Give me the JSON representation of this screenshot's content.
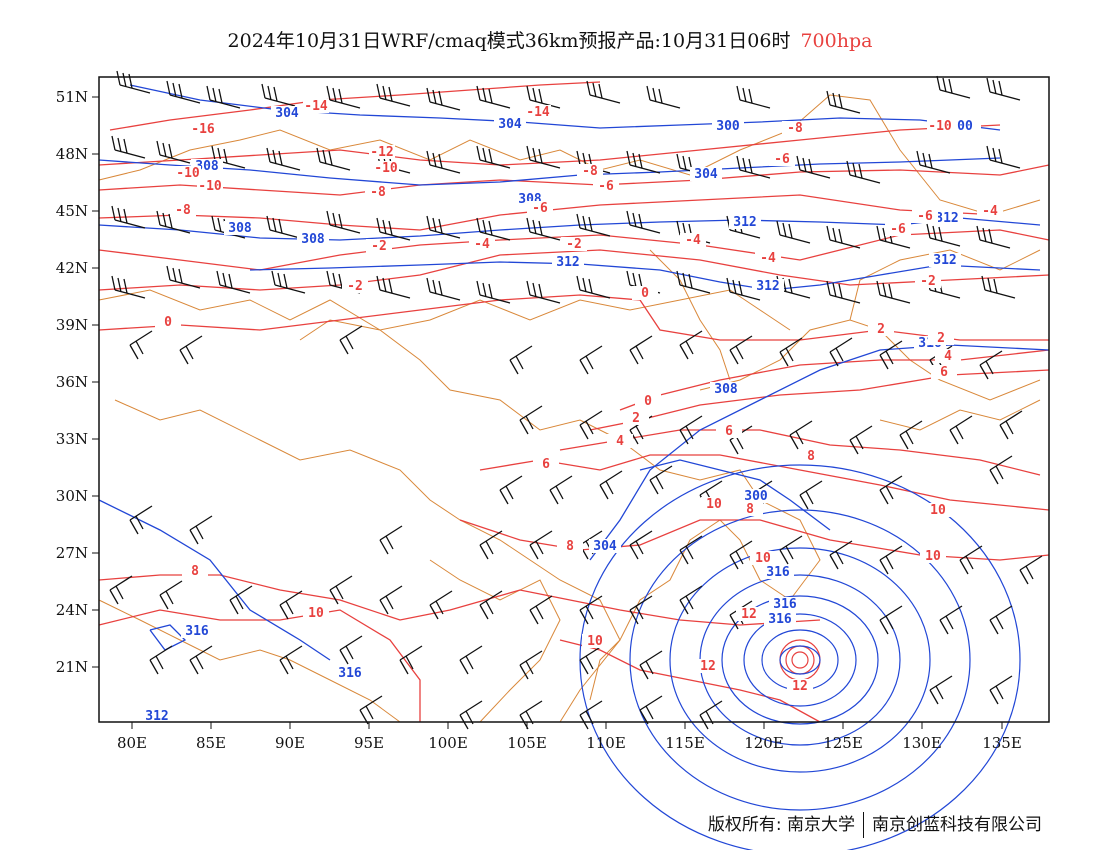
{
  "title": {
    "main": "2024年10月31日WRF/cmaq模式36km预报产品:10月31日06时",
    "level": "700hpa"
  },
  "colors": {
    "temperature": "#e8413f",
    "height": "#2247d6",
    "border": "#d9883a",
    "wind": "#111111",
    "frame": "#111111"
  },
  "axes": {
    "x_ticks": [
      "80E",
      "85E",
      "90E",
      "95E",
      "100E",
      "105E",
      "110E",
      "115E",
      "120E",
      "125E",
      "130E",
      "135E"
    ],
    "y_ticks": [
      "51N",
      "48N",
      "45N",
      "42N",
      "39N",
      "36N",
      "33N",
      "30N",
      "27N",
      "24N",
      "21N"
    ]
  },
  "height_labels": [
    "304",
    "304",
    "300",
    "00",
    "308",
    "304",
    "308",
    "312",
    "312",
    "308",
    "308",
    "312",
    "312",
    "312",
    "316",
    "316",
    "316",
    "312",
    "308",
    "300",
    "304",
    "316",
    "316",
    "316"
  ],
  "temperature_labels": [
    "-14",
    "-14",
    "-16",
    "-8",
    "-12",
    "-10",
    "-10",
    "-10",
    "-8",
    "-6",
    "-12",
    "-10",
    "-8",
    "-6",
    "-6",
    "-8",
    "-6",
    "-4",
    "-4",
    "-2",
    "-4",
    "-6",
    "-2",
    "-4",
    "-2",
    "0",
    "-2",
    "0",
    "2",
    "2",
    "4",
    "6",
    "0",
    "2",
    "4",
    "6",
    "8",
    "6",
    "8",
    "10",
    "8",
    "10",
    "10",
    "10",
    "12",
    "12",
    "12",
    "10",
    "10",
    "8"
  ],
  "copyright": {
    "owner": "版权所有: 南京大学",
    "partner": "南京创蓝科技有限公司"
  }
}
